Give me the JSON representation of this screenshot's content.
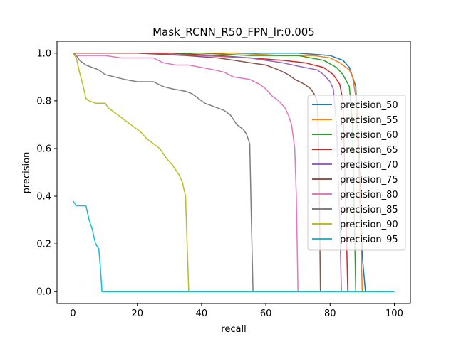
{
  "chart_data": {
    "type": "line",
    "title": "Mask_RCNN_R50_FPN_lr:0.005",
    "xlabel": "recall",
    "ylabel": "precision",
    "xlim": [
      -5,
      105
    ],
    "ylim": [
      -0.05,
      1.05
    ],
    "xticks": [
      0,
      20,
      40,
      60,
      80,
      100
    ],
    "yticks": [
      0.0,
      0.2,
      0.4,
      0.6,
      0.8,
      1.0
    ],
    "xtick_labels": [
      "0",
      "20",
      "40",
      "60",
      "80",
      "100"
    ],
    "ytick_labels": [
      "0.0",
      "0.2",
      "0.4",
      "0.6",
      "0.8",
      "1.0"
    ],
    "grid": false,
    "legend_position": "center-right",
    "series": [
      {
        "name": "precision_50",
        "color": "#1f77b4",
        "points": [
          [
            0,
            1.0
          ],
          [
            50,
            1.0
          ],
          [
            70,
            1.0
          ],
          [
            80,
            0.99
          ],
          [
            84,
            0.97
          ],
          [
            86,
            0.94
          ],
          [
            88,
            0.86
          ],
          [
            89,
            0.6
          ],
          [
            90,
            0.15
          ],
          [
            91,
            0.0
          ],
          [
            100,
            0.0
          ]
        ]
      },
      {
        "name": "precision_55",
        "color": "#ff7f0e",
        "points": [
          [
            0,
            1.0
          ],
          [
            50,
            1.0
          ],
          [
            65,
            0.99
          ],
          [
            75,
            0.99
          ],
          [
            80,
            0.98
          ],
          [
            83,
            0.96
          ],
          [
            86,
            0.93
          ],
          [
            87,
            0.9
          ],
          [
            88,
            0.82
          ],
          [
            89,
            0.5
          ],
          [
            90,
            0.0
          ],
          [
            100,
            0.0
          ]
        ]
      },
      {
        "name": "precision_60",
        "color": "#2ca02c",
        "points": [
          [
            0,
            1.0
          ],
          [
            40,
            1.0
          ],
          [
            55,
            0.99
          ],
          [
            70,
            0.99
          ],
          [
            78,
            0.97
          ],
          [
            82,
            0.94
          ],
          [
            84,
            0.91
          ],
          [
            86,
            0.86
          ],
          [
            87,
            0.7
          ],
          [
            88,
            0.0
          ],
          [
            100,
            0.0
          ]
        ]
      },
      {
        "name": "precision_65",
        "color": "#d62728",
        "points": [
          [
            0,
            1.0
          ],
          [
            30,
            1.0
          ],
          [
            45,
            0.99
          ],
          [
            55,
            0.98
          ],
          [
            65,
            0.97
          ],
          [
            72,
            0.96
          ],
          [
            78,
            0.94
          ],
          [
            81,
            0.91
          ],
          [
            83,
            0.87
          ],
          [
            84,
            0.8
          ],
          [
            85,
            0.3
          ],
          [
            85.5,
            0.0
          ],
          [
            100,
            0.0
          ]
        ]
      },
      {
        "name": "precision_70",
        "color": "#9467bd",
        "points": [
          [
            0,
            1.0
          ],
          [
            20,
            1.0
          ],
          [
            40,
            0.99
          ],
          [
            55,
            0.98
          ],
          [
            65,
            0.96
          ],
          [
            72,
            0.94
          ],
          [
            76,
            0.93
          ],
          [
            78,
            0.91
          ],
          [
            80,
            0.88
          ],
          [
            81,
            0.85
          ],
          [
            82,
            0.7
          ],
          [
            83,
            0.3
          ],
          [
            83.5,
            0.0
          ],
          [
            100,
            0.0
          ]
        ]
      },
      {
        "name": "precision_75",
        "color": "#8c564b",
        "points": [
          [
            0,
            1.0
          ],
          [
            20,
            1.0
          ],
          [
            35,
            0.99
          ],
          [
            45,
            0.98
          ],
          [
            50,
            0.97
          ],
          [
            55,
            0.96
          ],
          [
            60,
            0.95
          ],
          [
            64,
            0.93
          ],
          [
            67,
            0.91
          ],
          [
            69,
            0.89
          ],
          [
            72,
            0.87
          ],
          [
            74,
            0.85
          ],
          [
            75,
            0.83
          ],
          [
            76,
            0.8
          ],
          [
            76.5,
            0.6
          ],
          [
            77,
            0.0
          ],
          [
            100,
            0.0
          ]
        ]
      },
      {
        "name": "precision_80",
        "color": "#e377c2",
        "points": [
          [
            0,
            1.0
          ],
          [
            1,
            0.99
          ],
          [
            5,
            0.99
          ],
          [
            10,
            0.99
          ],
          [
            15,
            0.98
          ],
          [
            20,
            0.98
          ],
          [
            25,
            0.98
          ],
          [
            28,
            0.96
          ],
          [
            32,
            0.95
          ],
          [
            36,
            0.95
          ],
          [
            40,
            0.94
          ],
          [
            44,
            0.93
          ],
          [
            47,
            0.92
          ],
          [
            50,
            0.9
          ],
          [
            55,
            0.89
          ],
          [
            58,
            0.87
          ],
          [
            60,
            0.85
          ],
          [
            62,
            0.82
          ],
          [
            64,
            0.8
          ],
          [
            66,
            0.77
          ],
          [
            67,
            0.74
          ],
          [
            68,
            0.7
          ],
          [
            69,
            0.6
          ],
          [
            69.5,
            0.4
          ],
          [
            70,
            0.0
          ],
          [
            100,
            0.0
          ]
        ]
      },
      {
        "name": "precision_85",
        "color": "#7f7f7f",
        "points": [
          [
            0,
            1.0
          ],
          [
            1,
            0.99
          ],
          [
            2,
            0.97
          ],
          [
            3,
            0.96
          ],
          [
            4,
            0.95
          ],
          [
            6,
            0.94
          ],
          [
            8,
            0.93
          ],
          [
            10,
            0.91
          ],
          [
            13,
            0.9
          ],
          [
            16,
            0.89
          ],
          [
            20,
            0.88
          ],
          [
            25,
            0.88
          ],
          [
            28,
            0.86
          ],
          [
            31,
            0.85
          ],
          [
            35,
            0.84
          ],
          [
            37,
            0.83
          ],
          [
            39,
            0.81
          ],
          [
            41,
            0.79
          ],
          [
            43,
            0.78
          ],
          [
            45,
            0.77
          ],
          [
            47,
            0.76
          ],
          [
            49,
            0.74
          ],
          [
            50,
            0.72
          ],
          [
            51,
            0.7
          ],
          [
            53,
            0.68
          ],
          [
            54,
            0.66
          ],
          [
            55,
            0.62
          ],
          [
            55.5,
            0.3
          ],
          [
            56,
            0.0
          ],
          [
            100,
            0.0
          ]
        ]
      },
      {
        "name": "precision_90",
        "color": "#bcbd22",
        "points": [
          [
            0,
            1.0
          ],
          [
            1,
            0.98
          ],
          [
            2,
            0.92
          ],
          [
            3,
            0.87
          ],
          [
            4,
            0.81
          ],
          [
            5,
            0.8
          ],
          [
            7,
            0.79
          ],
          [
            10,
            0.79
          ],
          [
            11,
            0.77
          ],
          [
            13,
            0.75
          ],
          [
            15,
            0.73
          ],
          [
            17,
            0.71
          ],
          [
            19,
            0.69
          ],
          [
            21,
            0.67
          ],
          [
            23,
            0.64
          ],
          [
            25,
            0.62
          ],
          [
            27,
            0.6
          ],
          [
            29,
            0.56
          ],
          [
            31,
            0.53
          ],
          [
            33,
            0.49
          ],
          [
            34,
            0.46
          ],
          [
            35,
            0.4
          ],
          [
            35.5,
            0.2
          ],
          [
            36,
            0.0
          ],
          [
            100,
            0.0
          ]
        ]
      },
      {
        "name": "precision_95",
        "color": "#17becf",
        "points": [
          [
            0,
            0.38
          ],
          [
            1,
            0.36
          ],
          [
            2,
            0.36
          ],
          [
            3,
            0.36
          ],
          [
            4,
            0.36
          ],
          [
            5,
            0.3
          ],
          [
            6,
            0.26
          ],
          [
            7,
            0.2
          ],
          [
            8,
            0.18
          ],
          [
            8.5,
            0.1
          ],
          [
            9,
            0.0
          ],
          [
            100,
            0.0
          ]
        ]
      }
    ]
  }
}
